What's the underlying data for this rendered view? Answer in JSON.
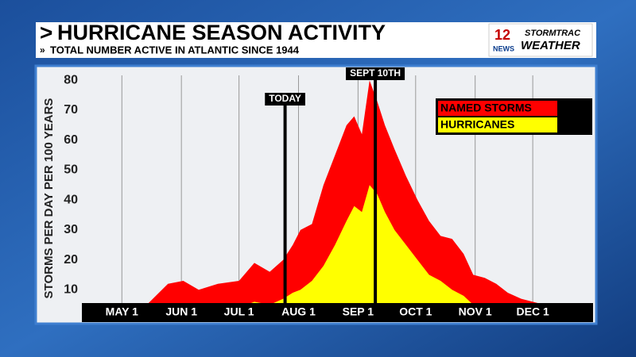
{
  "chart_data": {
    "type": "area",
    "title": "HURRICANE SEASON ACTIVITY",
    "subtitle": "TOTAL NUMBER ACTIVE IN ATLANTIC SINCE 1944",
    "y_label": "STORMS PER DAY PER 100 YEARS",
    "x": [
      112,
      122,
      134,
      145,
      153,
      161,
      171,
      182,
      190,
      198,
      205,
      210,
      214,
      220,
      226,
      232,
      238,
      242,
      246,
      250,
      254,
      258,
      263,
      269,
      275,
      281,
      287,
      293,
      299,
      304,
      310,
      316,
      322,
      329,
      335,
      341,
      343
    ],
    "series": [
      {
        "name": "NAMED STORMS",
        "color": "#ff0000",
        "values": [
          1,
          3,
          5,
          12,
          13,
          10,
          12,
          13,
          19,
          16,
          20,
          25,
          30,
          32,
          45,
          55,
          65,
          68,
          62,
          80,
          73,
          65,
          57,
          48,
          40,
          33,
          28,
          27,
          22,
          15,
          14,
          12,
          9,
          7,
          6,
          5,
          2
        ]
      },
      {
        "name": "HURRICANES",
        "color": "#ffff00",
        "values": [
          0,
          1,
          1,
          3,
          2,
          2,
          3,
          4,
          6,
          5,
          7,
          9,
          10,
          13,
          18,
          25,
          33,
          38,
          36,
          45,
          42,
          36,
          30,
          25,
          20,
          15,
          13,
          10,
          8,
          5,
          4,
          3,
          3,
          2,
          2,
          1,
          0
        ]
      }
    ],
    "xlim": [
      101,
      366
    ],
    "xticks": [
      {
        "value": 121,
        "label": "MAY 1"
      },
      {
        "value": 152,
        "label": "JUN 1"
      },
      {
        "value": 182,
        "label": "JUL 1"
      },
      {
        "value": 213,
        "label": "AUG 1"
      },
      {
        "value": 244,
        "label": "SEP 1"
      },
      {
        "value": 274,
        "label": "OCT 1"
      },
      {
        "value": 305,
        "label": "NOV 1"
      },
      {
        "value": 335,
        "label": "DEC 1"
      }
    ],
    "ylim": [
      0,
      83
    ],
    "yticks": [
      10,
      20,
      30,
      40,
      50,
      60,
      70,
      80
    ],
    "grid": true,
    "legend": "upper right",
    "annotations": [
      {
        "text": "TODAY",
        "x": 206
      },
      {
        "text": "SEPT 10TH",
        "x": 253
      }
    ]
  },
  "logo": {
    "number": "12",
    "station": "NEWS",
    "line1": "STORMTRAC",
    "line2": "WEATHER"
  }
}
